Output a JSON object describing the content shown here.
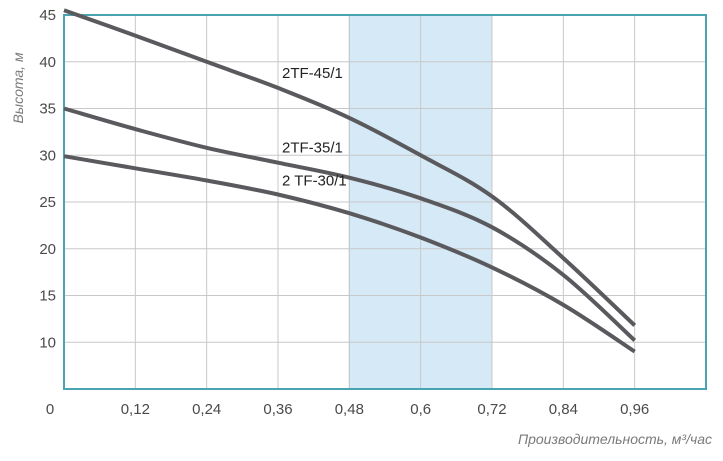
{
  "chart_data": {
    "type": "line",
    "xlabel": "Производительность, м³/час",
    "ylabel": "Высота, м",
    "xlim": [
      0,
      1.08
    ],
    "ylim": [
      5,
      45
    ],
    "x_ticks": [
      0,
      0.12,
      0.24,
      0.36,
      0.48,
      0.6,
      0.72,
      0.84,
      0.96
    ],
    "x_tick_labels": [
      "0",
      "0,12",
      "0,24",
      "0,36",
      "0,48",
      "0,6",
      "0,72",
      "0,84",
      "0,96"
    ],
    "y_ticks": [
      10,
      15,
      20,
      25,
      30,
      35,
      40,
      45
    ],
    "y_tick_labels": [
      "10",
      "15",
      "20",
      "25",
      "30",
      "35",
      "40",
      "45"
    ],
    "grid": true,
    "highlight_band": {
      "x_from": 0.48,
      "x_to": 0.72
    },
    "colors": {
      "frame": "#4aa3b0",
      "grid": "#c8c8c8",
      "band": "#d6e9f6",
      "band_edge": "#9cc9e4",
      "line": "#5a5a5e"
    },
    "series": [
      {
        "name": "2TF-45/1",
        "x": [
          0,
          0.12,
          0.24,
          0.36,
          0.48,
          0.6,
          0.72,
          0.84,
          0.96
        ],
        "y": [
          45.5,
          42.8,
          40.0,
          37.2,
          34.0,
          30.0,
          25.6,
          19.0,
          11.8
        ]
      },
      {
        "name": "2TF-35/1",
        "x": [
          0,
          0.12,
          0.24,
          0.36,
          0.48,
          0.6,
          0.72,
          0.84,
          0.96
        ],
        "y": [
          35.0,
          32.8,
          30.8,
          29.2,
          27.6,
          25.4,
          22.3,
          17.2,
          10.2
        ]
      },
      {
        "name": "2 TF-30/1",
        "x": [
          0,
          0.12,
          0.24,
          0.36,
          0.48,
          0.6,
          0.72,
          0.84,
          0.96
        ],
        "y": [
          29.9,
          28.6,
          27.3,
          25.8,
          23.8,
          21.2,
          18.0,
          14.0,
          9.0
        ]
      }
    ]
  }
}
